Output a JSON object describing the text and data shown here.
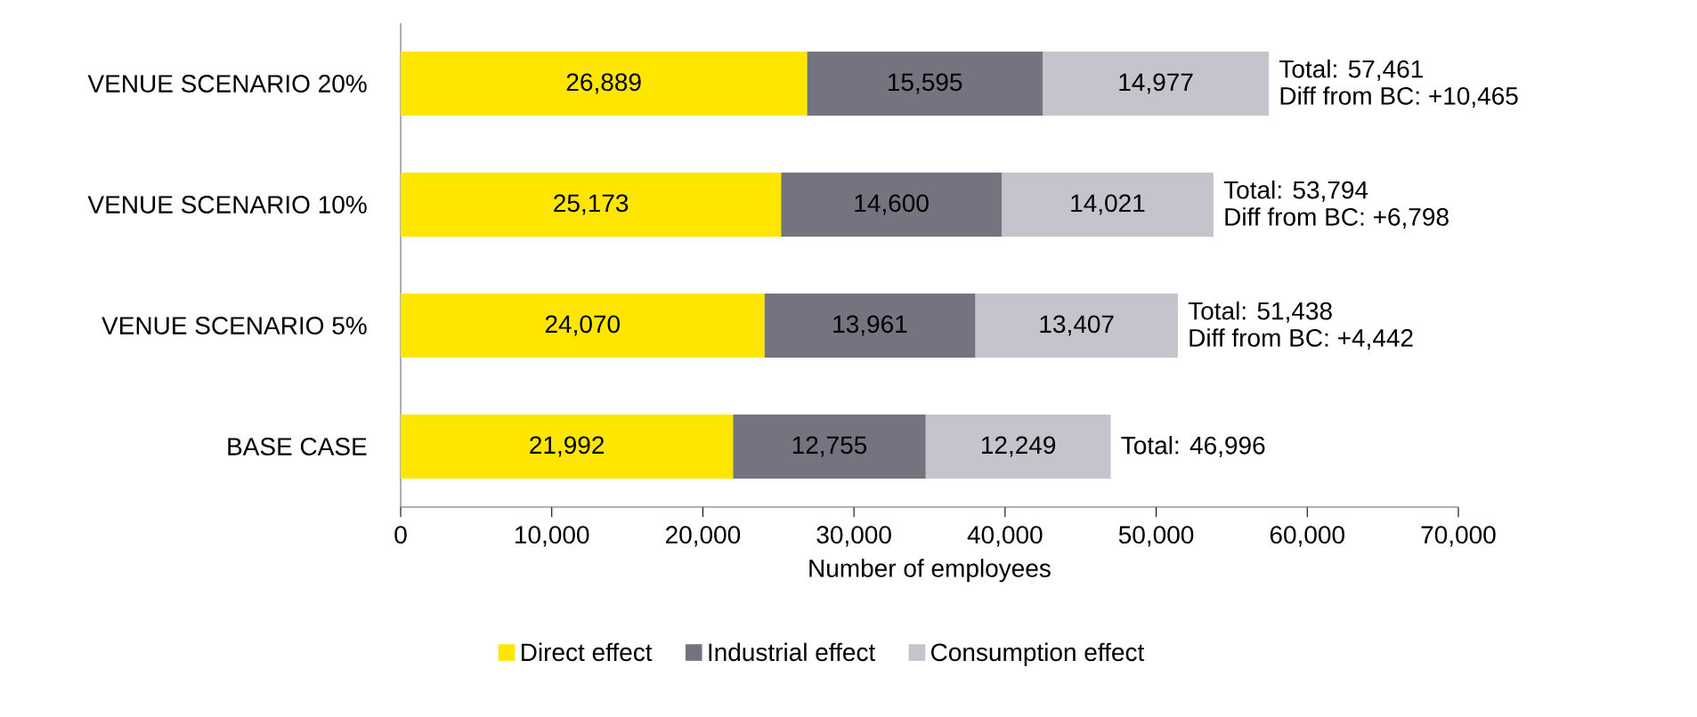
{
  "chart_data": {
    "type": "bar",
    "orientation": "horizontal",
    "stacked": true,
    "xlabel": "Number of employees",
    "categories": [
      "VENUE SCENARIO 20%",
      "VENUE SCENARIO 10%",
      "VENUE SCENARIO 5%",
      "BASE CASE"
    ],
    "series": [
      {
        "name": "Direct effect",
        "color": "#ffe600",
        "values": [
          26889,
          25173,
          24070,
          21992
        ],
        "value_labels": [
          "26,889",
          "25,173",
          "24,070",
          "21,992"
        ]
      },
      {
        "name": "Industrial effect",
        "color": "#747480",
        "values": [
          15595,
          14600,
          13961,
          12755
        ],
        "value_labels": [
          "15,595",
          "14,600",
          "13,961",
          "12,755"
        ]
      },
      {
        "name": "Consumption effect",
        "color": "#c4c4cd",
        "values": [
          14977,
          14021,
          13407,
          12249
        ],
        "value_labels": [
          "14,977",
          "14,021",
          "13,407",
          "12,249"
        ]
      }
    ],
    "totals": [
      "Total: 57,461",
      "Total: 53,794",
      "Total: 51,438",
      "Total: 46,996"
    ],
    "annotations": [
      {
        "text": "Diff from BC: +10,465",
        "x": 57461,
        "y": "VENUE SCENARIO 20%"
      },
      {
        "text": "Diff from BC: +6,798",
        "x": 53794,
        "y": "VENUE SCENARIO 10%"
      },
      {
        "text": "Diff from BC: +4,442",
        "x": 51438,
        "y": "VENUE SCENARIO 5%"
      }
    ],
    "xlim": [
      0,
      70000
    ],
    "xticks": [
      {
        "value": 0,
        "label": "0"
      },
      {
        "value": 10000,
        "label": "10,000"
      },
      {
        "value": 20000,
        "label": "20,000"
      },
      {
        "value": 30000,
        "label": "30,000"
      },
      {
        "value": 40000,
        "label": "40,000"
      },
      {
        "value": 50000,
        "label": "50,000"
      },
      {
        "value": 60000,
        "label": "60,000"
      },
      {
        "value": 70000,
        "label": "70,000"
      }
    ],
    "legend": "bottom",
    "grid": false
  }
}
